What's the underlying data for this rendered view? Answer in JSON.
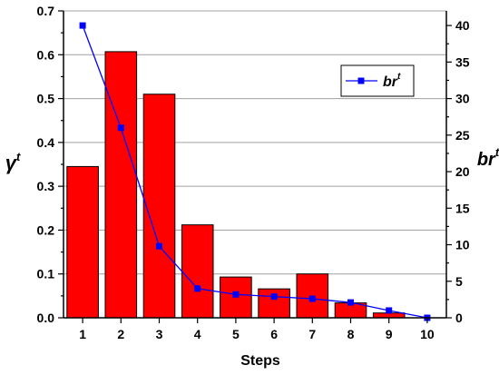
{
  "chart_data": {
    "type": "bar",
    "categories": [
      "1",
      "2",
      "3",
      "4",
      "5",
      "6",
      "7",
      "8",
      "9",
      "10"
    ],
    "series": [
      {
        "axis": "left",
        "kind": "bar",
        "values": [
          0.345,
          0.607,
          0.51,
          0.212,
          0.093,
          0.066,
          0.1,
          0.034,
          0.011,
          0.0
        ],
        "color": "#ff0000"
      },
      {
        "name": "br",
        "name_superscript": "t",
        "axis": "right",
        "kind": "line",
        "values": [
          40,
          26,
          9.8,
          4,
          3.2,
          2.9,
          2.6,
          2.1,
          1.0,
          0
        ],
        "color": "#0000ff"
      }
    ],
    "xlabel": "Steps",
    "ylabel_left": "γ",
    "ylabel_left_superscript": "t",
    "ylabel_right": "br",
    "ylabel_right_superscript": "t",
    "ylim_left": [
      0,
      0.7
    ],
    "ylim_right": [
      0,
      42
    ],
    "yticks_left": [
      "0.0",
      "0.1",
      "0.2",
      "0.3",
      "0.4",
      "0.5",
      "0.6",
      "0.7"
    ],
    "yticks_right": [
      "0",
      "5",
      "10",
      "15",
      "20",
      "25",
      "30",
      "35",
      "40"
    ],
    "grid": true,
    "legend_position": "top-right"
  }
}
